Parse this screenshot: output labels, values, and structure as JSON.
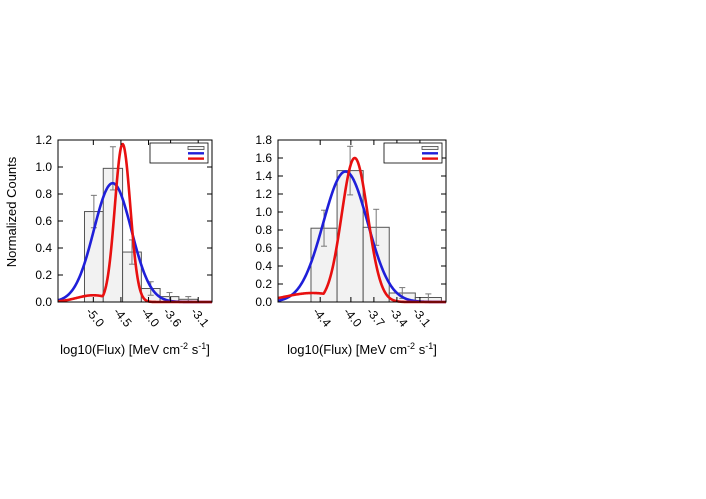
{
  "figure": {
    "ylabel": "Normalized Counts",
    "xlabel_main": "log10(Flux) [MeV cm",
    "xlabel_sup1": "-2",
    "xlabel_mid": " s",
    "xlabel_sup2": "-1",
    "xlabel_end": "]"
  },
  "colors": {
    "bar_fill": "#f2f2f2",
    "bar_stroke": "#555555",
    "lognormal": "#1f1fd9",
    "gaussian": "#e81010",
    "errorbar": "#777777"
  },
  "chart_data": [
    {
      "type": "bar",
      "title": "",
      "xlabel": "log10(Flux) [MeV cm-2 s-1]",
      "ylabel": "Normalized Counts",
      "xlim": [
        -5.64,
        -2.85
      ],
      "ylim": [
        0,
        1.2
      ],
      "yticks": [
        0.0,
        0.2,
        0.4,
        0.6,
        0.8,
        1.0,
        1.2
      ],
      "ytick_labels": [
        "0.0",
        "0.2",
        "0.4",
        "0.6",
        "0.8",
        "1.0",
        "1.2"
      ],
      "xticks": [
        -5.0,
        -4.5,
        -4.0,
        -3.6,
        -3.1
      ],
      "xtick_labels": [
        "-5.0",
        "-4.5",
        "-4.0",
        "-3.6",
        "-3.1"
      ],
      "bin_edges": [
        -5.16,
        -4.82,
        -4.47,
        -4.13,
        -3.79,
        -3.45,
        -3.11
      ],
      "values": [
        0.67,
        0.99,
        0.37,
        0.1,
        0.04,
        0.02
      ],
      "errors": [
        0.12,
        0.16,
        0.09,
        0.05,
        0.03,
        0.02
      ],
      "legend": {
        "placement": "top-right",
        "entries": [
          "",
          "",
          ""
        ]
      },
      "series": [
        {
          "name": "",
          "kind": "lognormal",
          "mu": -4.65,
          "sigma": 0.34,
          "peak": 0.88
        },
        {
          "name": "",
          "kind": "gaussian",
          "mu": -4.47,
          "sigma": 0.14,
          "peak": 1.17,
          "floor_mu": -5.0,
          "floor_sigma": 0.3,
          "floor_peak": 0.05
        }
      ],
      "grid": false
    },
    {
      "type": "bar",
      "title": "",
      "xlabel": "log10(Flux) [MeV cm-2 s-1]",
      "ylabel": "",
      "xlim": [
        -4.95,
        -2.76
      ],
      "ylim": [
        0,
        1.8
      ],
      "yticks": [
        0.0,
        0.2,
        0.4,
        0.6,
        0.8,
        1.0,
        1.2,
        1.4,
        1.6,
        1.8
      ],
      "ytick_labels": [
        "0.0",
        "0.2",
        "0.4",
        "0.6",
        "0.8",
        "1.0",
        "1.2",
        "1.4",
        "1.6",
        "1.8"
      ],
      "xticks": [
        -4.4,
        -4.0,
        -3.7,
        -3.4,
        -3.1
      ],
      "xtick_labels": [
        "-4.4",
        "-4.0",
        "-3.7",
        "-3.4",
        "-3.1"
      ],
      "bin_edges": [
        -4.52,
        -4.18,
        -3.84,
        -3.5,
        -3.16,
        -2.82
      ],
      "values": [
        0.82,
        1.46,
        0.83,
        0.1,
        0.05
      ],
      "errors": [
        0.2,
        0.27,
        0.2,
        0.06,
        0.04
      ],
      "legend": {
        "placement": "top-right",
        "entries": [
          "",
          "",
          ""
        ]
      },
      "series": [
        {
          "name": "",
          "kind": "lognormal",
          "mu": -4.07,
          "sigma": 0.29,
          "peak": 1.45
        },
        {
          "name": "",
          "kind": "gaussian",
          "mu": -3.95,
          "sigma": 0.17,
          "peak": 1.6,
          "floor_mu": -4.5,
          "floor_sigma": 0.35,
          "floor_peak": 0.1
        }
      ],
      "grid": false
    }
  ]
}
